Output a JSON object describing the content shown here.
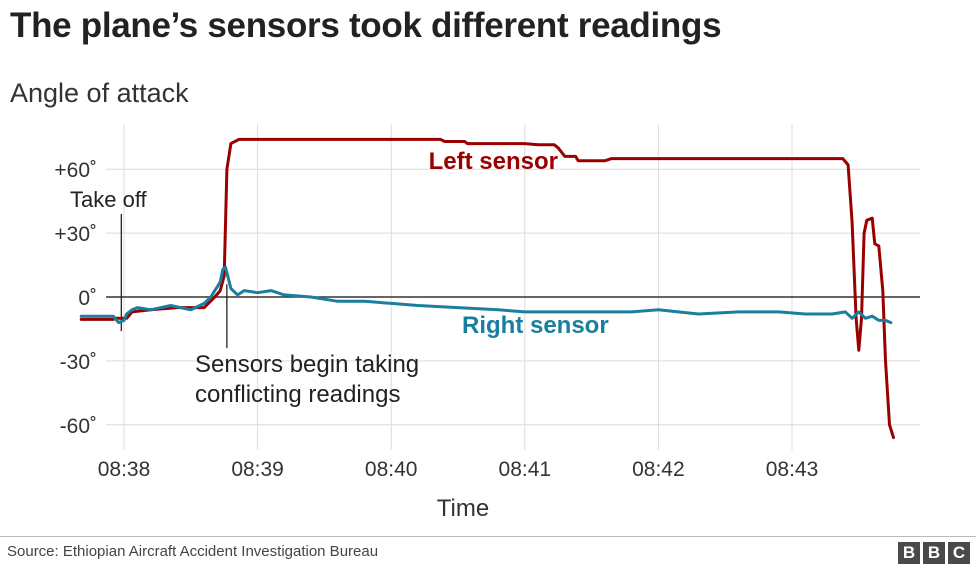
{
  "header": {
    "title": "The plane’s sensors took different readings",
    "subtitle": "Angle of attack"
  },
  "footer": {
    "source": "Source: Ethiopian Aircraft Accident Investigation Bureau",
    "logo_letters": [
      "B",
      "B",
      "C"
    ]
  },
  "chart_data": {
    "type": "line",
    "title": "The plane’s sensors took different readings",
    "subtitle": "Angle of attack",
    "xlabel": "Time",
    "ylabel": "",
    "x_unit": "minutes after 08:38",
    "xlim": [
      -0.22,
      5.98
    ],
    "ylim": [
      -70,
      78
    ],
    "x_ticks": [
      0,
      1,
      2,
      3,
      4,
      5
    ],
    "x_tick_labels": [
      "08:38",
      "08:39",
      "08:40",
      "08:41",
      "08:42",
      "08:43"
    ],
    "y_ticks": [
      60,
      30,
      0,
      -30,
      -60
    ],
    "y_tick_labels": [
      "+60˚",
      "+30˚",
      "0˚",
      "-30˚",
      "-60˚"
    ],
    "grid": true,
    "series": [
      {
        "name": "Left sensor",
        "color": "#990000",
        "points": [
          [
            -0.32,
            -10.5
          ],
          [
            -0.08,
            -10.5
          ],
          [
            -0.06,
            -10
          ],
          [
            0.02,
            -10
          ],
          [
            0.06,
            -7
          ],
          [
            0.2,
            -6
          ],
          [
            0.4,
            -5
          ],
          [
            0.6,
            -5
          ],
          [
            0.68,
            0
          ],
          [
            0.72,
            3
          ],
          [
            0.75,
            10
          ],
          [
            0.77,
            60
          ],
          [
            0.8,
            72
          ],
          [
            0.86,
            74
          ],
          [
            1.5,
            74
          ],
          [
            2.2,
            74
          ],
          [
            2.37,
            74
          ],
          [
            2.4,
            73
          ],
          [
            2.55,
            73
          ],
          [
            2.57,
            72
          ],
          [
            3.0,
            72
          ],
          [
            3.1,
            71.5
          ],
          [
            3.22,
            71.5
          ],
          [
            3.25,
            70
          ],
          [
            3.3,
            66
          ],
          [
            3.38,
            66
          ],
          [
            3.4,
            64
          ],
          [
            3.6,
            64
          ],
          [
            3.65,
            65
          ],
          [
            4.0,
            65
          ],
          [
            4.5,
            65
          ],
          [
            5.0,
            65
          ],
          [
            5.38,
            65
          ],
          [
            5.42,
            62
          ],
          [
            5.45,
            35
          ],
          [
            5.48,
            -10
          ],
          [
            5.5,
            -25
          ],
          [
            5.52,
            -10
          ],
          [
            5.54,
            30
          ],
          [
            5.56,
            36
          ],
          [
            5.6,
            37
          ],
          [
            5.62,
            25
          ],
          [
            5.65,
            24
          ],
          [
            5.68,
            3
          ],
          [
            5.7,
            -30
          ],
          [
            5.73,
            -60
          ],
          [
            5.76,
            -66
          ]
        ]
      },
      {
        "name": "Right sensor",
        "color": "#1a7f9e",
        "points": [
          [
            -0.32,
            -9
          ],
          [
            -0.08,
            -9
          ],
          [
            -0.04,
            -12
          ],
          [
            0.0,
            -11
          ],
          [
            0.02,
            -8
          ],
          [
            0.06,
            -6
          ],
          [
            0.1,
            -5
          ],
          [
            0.2,
            -6
          ],
          [
            0.35,
            -4
          ],
          [
            0.5,
            -6
          ],
          [
            0.6,
            -3
          ],
          [
            0.65,
            0
          ],
          [
            0.68,
            3
          ],
          [
            0.7,
            5
          ],
          [
            0.72,
            7
          ],
          [
            0.74,
            13
          ],
          [
            0.76,
            14
          ],
          [
            0.8,
            4
          ],
          [
            0.85,
            1
          ],
          [
            0.9,
            3
          ],
          [
            1.0,
            2
          ],
          [
            1.1,
            3
          ],
          [
            1.2,
            1
          ],
          [
            1.4,
            0
          ],
          [
            1.6,
            -2
          ],
          [
            1.8,
            -2
          ],
          [
            2.0,
            -3
          ],
          [
            2.2,
            -4
          ],
          [
            2.5,
            -5
          ],
          [
            2.8,
            -6
          ],
          [
            3.0,
            -7
          ],
          [
            3.2,
            -7
          ],
          [
            3.5,
            -7
          ],
          [
            3.8,
            -7
          ],
          [
            4.0,
            -6
          ],
          [
            4.3,
            -8
          ],
          [
            4.6,
            -7
          ],
          [
            4.9,
            -7
          ],
          [
            5.1,
            -8
          ],
          [
            5.3,
            -8
          ],
          [
            5.4,
            -7
          ],
          [
            5.45,
            -10
          ],
          [
            5.5,
            -7
          ],
          [
            5.55,
            -10
          ],
          [
            5.6,
            -9
          ],
          [
            5.65,
            -11
          ],
          [
            5.7,
            -11
          ],
          [
            5.74,
            -12
          ]
        ]
      }
    ],
    "annotations": [
      {
        "text": "Left sensor",
        "x": 2.28,
        "y": 60,
        "color": "#990000"
      },
      {
        "text": "Right sensor",
        "x": 2.53,
        "y": -17,
        "color": "#1a7f9e"
      },
      {
        "text": "Take off",
        "x": -0.02,
        "y": 45
      },
      {
        "lines": [
          "Sensors begin taking",
          "conflicting readings"
        ],
        "x": 0.79,
        "y": -31
      }
    ]
  }
}
